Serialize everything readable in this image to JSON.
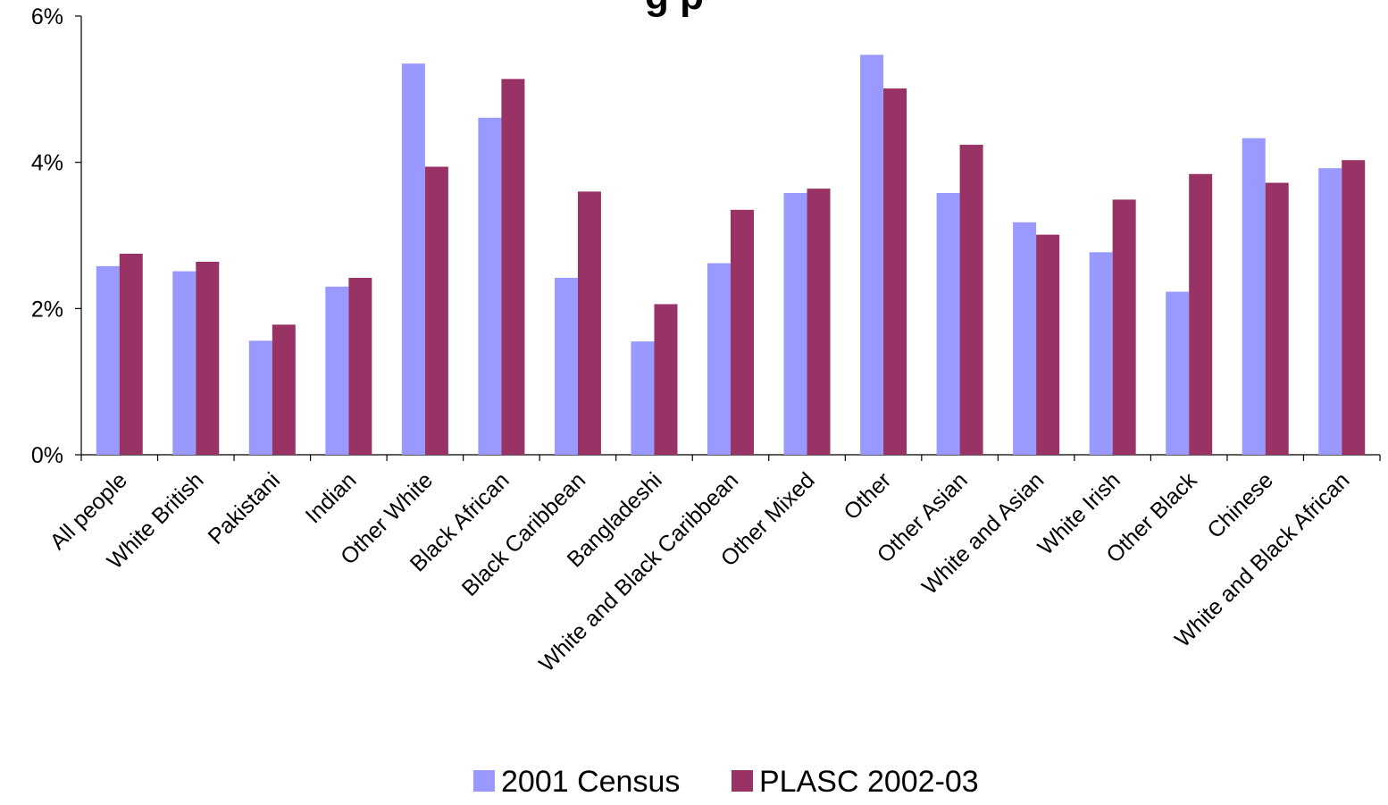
{
  "chart_data": {
    "type": "bar",
    "title": "",
    "title_visible_fragment": "g p",
    "xlabel": "",
    "ylabel": "",
    "ylim": [
      0,
      6
    ],
    "y_ticks": [
      "0%",
      "2%",
      "4%",
      "6%"
    ],
    "y_tick_values": [
      0,
      2,
      4,
      6
    ],
    "grid": false,
    "legend_position": "bottom",
    "categories": [
      "All people",
      "White British",
      "Pakistani",
      "Indian",
      "Other White",
      "Black African",
      "Black Caribbean",
      "Bangladeshi",
      "White and Black Caribbean",
      "Other Mixed",
      "Other",
      "Other Asian",
      "White and Asian",
      "White Irish",
      "Other Black",
      "Chinese",
      "White and Black African"
    ],
    "series": [
      {
        "name": "2001 Census",
        "color": "#9999ff",
        "values": [
          2.58,
          2.51,
          1.56,
          2.3,
          5.35,
          4.61,
          2.42,
          1.55,
          2.62,
          3.58,
          5.47,
          3.58,
          3.18,
          2.77,
          2.23,
          4.33,
          3.92
        ]
      },
      {
        "name": "PLASC 2002-03",
        "color": "#993366",
        "values": [
          2.75,
          2.64,
          1.78,
          2.42,
          3.94,
          5.14,
          3.6,
          2.06,
          3.35,
          3.64,
          5.01,
          4.24,
          3.01,
          3.49,
          3.84,
          3.72,
          4.03
        ]
      }
    ]
  }
}
